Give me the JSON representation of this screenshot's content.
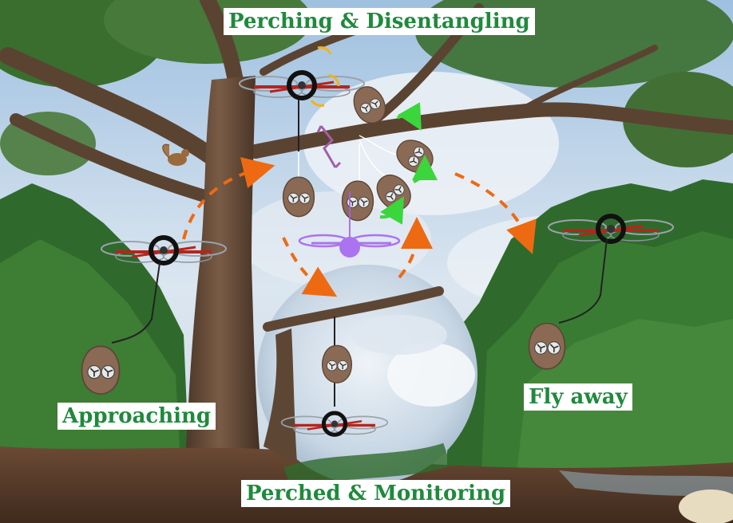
{
  "stages": {
    "perching": "Perching & Disentangling",
    "approaching": "Approaching",
    "perched": "Perched & Monitoring",
    "fly_away": "Fly away"
  },
  "colors": {
    "label_text": "#1f8a3c",
    "label_bg": "#ffffff",
    "flight_path": "#ee6a12",
    "disentangle_arrow": "#3bd63b",
    "ghost_drone": "#a25ff0",
    "pod": "#8a6a55",
    "drone_frame": "#b3261e",
    "sky": "#b9d3ea",
    "ground": "#5a3d2b",
    "foliage": "#2f6a2c"
  },
  "icons": [
    "drone-icon",
    "pod-icon",
    "squirrel-icon",
    "rotation-arrow-icon"
  ]
}
